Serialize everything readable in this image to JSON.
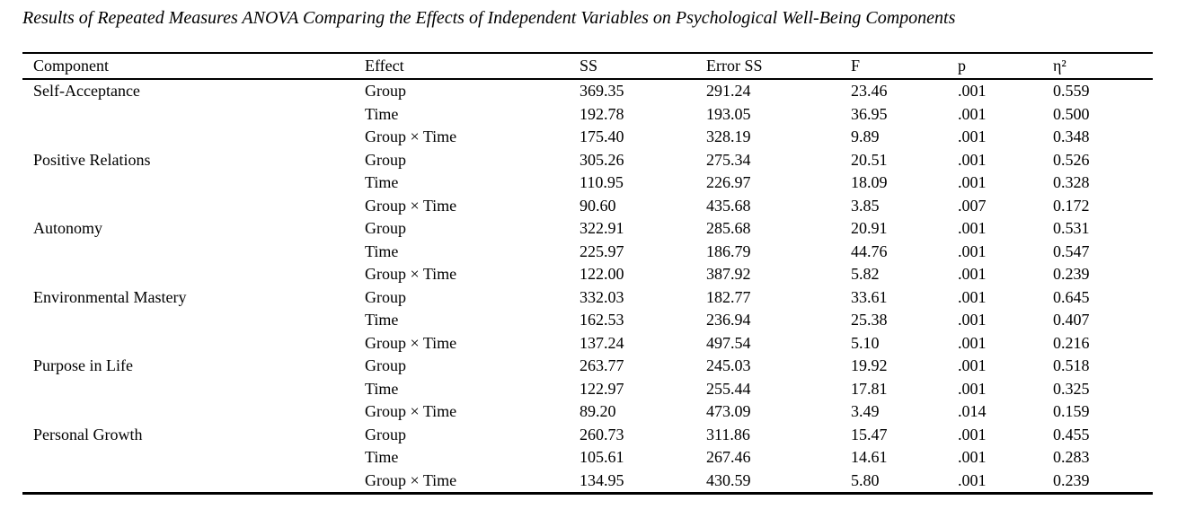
{
  "title": "Results of Repeated Measures ANOVA Comparing the Effects of Independent Variables on Psychological Well-Being Components",
  "table": {
    "columns": [
      "Component",
      "Effect",
      "SS",
      "Error SS",
      "F",
      "p",
      "η²"
    ],
    "groups": [
      {
        "component": "Self-Acceptance",
        "effects": [
          {
            "effect": "Group",
            "ss": "369.35",
            "error_ss": "291.24",
            "f": "23.46",
            "p": ".001",
            "eta_sq": "0.559"
          },
          {
            "effect": "Time",
            "ss": "192.78",
            "error_ss": "193.05",
            "f": "36.95",
            "p": ".001",
            "eta_sq": "0.500"
          },
          {
            "effect": "Group × Time",
            "ss": "175.40",
            "error_ss": "328.19",
            "f": "9.89",
            "p": ".001",
            "eta_sq": "0.348"
          }
        ]
      },
      {
        "component": "Positive Relations",
        "effects": [
          {
            "effect": "Group",
            "ss": "305.26",
            "error_ss": "275.34",
            "f": "20.51",
            "p": ".001",
            "eta_sq": "0.526"
          },
          {
            "effect": "Time",
            "ss": "110.95",
            "error_ss": "226.97",
            "f": "18.09",
            "p": ".001",
            "eta_sq": "0.328"
          },
          {
            "effect": "Group × Time",
            "ss": "90.60",
            "error_ss": "435.68",
            "f": "3.85",
            "p": ".007",
            "eta_sq": "0.172"
          }
        ]
      },
      {
        "component": "Autonomy",
        "effects": [
          {
            "effect": "Group",
            "ss": "322.91",
            "error_ss": "285.68",
            "f": "20.91",
            "p": ".001",
            "eta_sq": "0.531"
          },
          {
            "effect": "Time",
            "ss": "225.97",
            "error_ss": "186.79",
            "f": "44.76",
            "p": ".001",
            "eta_sq": "0.547"
          },
          {
            "effect": "Group × Time",
            "ss": "122.00",
            "error_ss": "387.92",
            "f": "5.82",
            "p": ".001",
            "eta_sq": "0.239"
          }
        ]
      },
      {
        "component": "Environmental Mastery",
        "effects": [
          {
            "effect": "Group",
            "ss": "332.03",
            "error_ss": "182.77",
            "f": "33.61",
            "p": ".001",
            "eta_sq": "0.645"
          },
          {
            "effect": "Time",
            "ss": "162.53",
            "error_ss": "236.94",
            "f": "25.38",
            "p": ".001",
            "eta_sq": "0.407"
          },
          {
            "effect": "Group × Time",
            "ss": "137.24",
            "error_ss": "497.54",
            "f": "5.10",
            "p": ".001",
            "eta_sq": "0.216"
          }
        ]
      },
      {
        "component": "Purpose in Life",
        "effects": [
          {
            "effect": "Group",
            "ss": "263.77",
            "error_ss": "245.03",
            "f": "19.92",
            "p": ".001",
            "eta_sq": "0.518"
          },
          {
            "effect": "Time",
            "ss": "122.97",
            "error_ss": "255.44",
            "f": "17.81",
            "p": ".001",
            "eta_sq": "0.325"
          },
          {
            "effect": "Group × Time",
            "ss": "89.20",
            "error_ss": "473.09",
            "f": "3.49",
            "p": ".014",
            "eta_sq": "0.159"
          }
        ]
      },
      {
        "component": "Personal Growth",
        "effects": [
          {
            "effect": "Group",
            "ss": "260.73",
            "error_ss": "311.86",
            "f": "15.47",
            "p": ".001",
            "eta_sq": "0.455"
          },
          {
            "effect": "Time",
            "ss": "105.61",
            "error_ss": "267.46",
            "f": "14.61",
            "p": ".001",
            "eta_sq": "0.283"
          },
          {
            "effect": "Group × Time",
            "ss": "134.95",
            "error_ss": "430.59",
            "f": "5.80",
            "p": ".001",
            "eta_sq": "0.239"
          }
        ]
      }
    ]
  }
}
